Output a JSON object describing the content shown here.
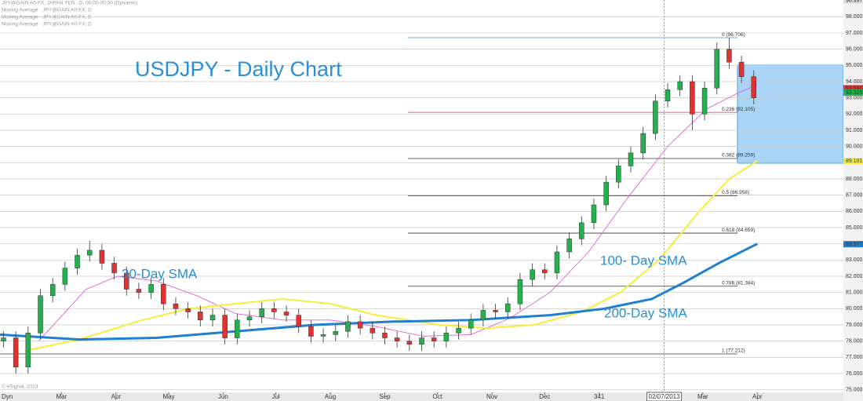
{
  "chart_data": {
    "type": "candlestick",
    "title": "USDJPY - Daily Chart",
    "header": [
      "JPY@GAIN A0-FX, JAPAN YEN , D, 00:00-00:00 (Dynamic)",
      "Moving Average - JPY@GAIN A0-FX, D",
      "Moving Average - JPY@GAIN A0-FX, D",
      "Moving Average - JPY@GAIN A0-FX, D"
    ],
    "copyright": "© eSignal, 2013",
    "corner_label": "Dyn",
    "annotations": [
      "30-Day SMA",
      "100- Day SMA",
      "200-Day SMA"
    ],
    "xlim": [
      0,
      480
    ],
    "xticks": [
      {
        "value": 35,
        "label": "Mar"
      },
      {
        "value": 66,
        "label": "Apr"
      },
      {
        "value": 96,
        "label": "May"
      },
      {
        "value": 127,
        "label": "Jun"
      },
      {
        "value": 157,
        "label": "Jul"
      },
      {
        "value": 188,
        "label": "Aug"
      },
      {
        "value": 219,
        "label": "Sep"
      },
      {
        "value": 249,
        "label": "Oct"
      },
      {
        "value": 280,
        "label": "Nov"
      },
      {
        "value": 310,
        "label": "Dec"
      },
      341,
      {
        "value": 400,
        "label": "Mar"
      },
      {
        "value": 431,
        "label": "Apr"
      }
    ],
    "cursor": {
      "x": 378,
      "label": "02/07/2013"
    },
    "ylim": [
      74.84,
      99.03
    ],
    "yticks": [
      {
        "value": 75,
        "label": "75.000"
      },
      {
        "value": 76,
        "label": "76.000"
      },
      {
        "value": 77,
        "label": "77.000"
      },
      {
        "value": 78,
        "label": "78.000"
      },
      {
        "value": 79,
        "label": "79.000"
      },
      {
        "value": 80,
        "label": "80.000"
      },
      {
        "value": 81,
        "label": "81.000"
      },
      {
        "value": 82,
        "label": "82.000"
      },
      {
        "value": 83,
        "label": "83.000"
      },
      {
        "value": 84,
        "label": "84.000"
      },
      {
        "value": 85,
        "label": "85.000"
      },
      {
        "value": 86,
        "label": "86.000"
      },
      {
        "value": 87,
        "label": "87.000"
      },
      {
        "value": 88,
        "label": "88.000"
      },
      {
        "value": 89,
        "label": "89.000"
      },
      {
        "value": 90,
        "label": "90.000"
      },
      {
        "value": 91,
        "label": "91.000"
      },
      {
        "value": 92,
        "label": "92.000"
      },
      {
        "value": 93,
        "label": "93.000"
      },
      {
        "value": 94,
        "label": "94.000"
      },
      {
        "value": 95,
        "label": "95.000"
      },
      {
        "value": 96,
        "label": "96.000"
      },
      {
        "value": 97,
        "label": "97.000"
      },
      {
        "value": 98,
        "label": "98.000"
      }
    ],
    "grid": true,
    "up_color": "#22b14c",
    "down_color": "#e0322f",
    "x": [
      2,
      9,
      16,
      23,
      30,
      37,
      44,
      51,
      58,
      65,
      72,
      79,
      86,
      93,
      100,
      107,
      114,
      121,
      128,
      135,
      142,
      149,
      156,
      163,
      170,
      177,
      184,
      191,
      198,
      205,
      212,
      219,
      226,
      233,
      240,
      247,
      254,
      261,
      268,
      275,
      282,
      289,
      296,
      303,
      310,
      317,
      324,
      331,
      338,
      345,
      352,
      359,
      366,
      373,
      380,
      387,
      394,
      401,
      408,
      415,
      422,
      429
    ],
    "open": [
      78.0,
      78.2,
      76.4,
      78.5,
      80.8,
      81.5,
      82.5,
      83.3,
      83.6,
      82.8,
      82.2,
      81.2,
      81.0,
      81.5,
      80.3,
      80.0,
      79.8,
      79.3,
      79.6,
      78.2,
      79.3,
      79.5,
      80.0,
      79.8,
      79.6,
      78.9,
      78.3,
      78.4,
      78.6,
      79.2,
      78.8,
      78.5,
      78.2,
      78.0,
      77.8,
      78.2,
      78.0,
      78.5,
      78.8,
      79.3,
      79.9,
      79.8,
      80.3,
      81.8,
      82.4,
      82.2,
      83.5,
      84.3,
      85.3,
      86.4,
      87.8,
      88.8,
      89.6,
      90.8,
      92.8,
      93.5,
      94.0,
      92.0,
      93.6,
      96.0,
      95.2,
      94.3
    ],
    "high": [
      78.6,
      78.6,
      78.9,
      81.2,
      81.9,
      82.9,
      83.7,
      84.2,
      84.0,
      83.2,
      82.6,
      81.6,
      81.9,
      81.9,
      80.7,
      80.4,
      80.2,
      80.0,
      80.0,
      79.7,
      79.9,
      80.4,
      80.4,
      80.2,
      80.0,
      79.3,
      78.8,
      79.0,
      79.6,
      79.6,
      79.2,
      78.9,
      78.6,
      78.4,
      78.6,
      78.6,
      78.9,
      79.2,
      79.7,
      80.3,
      80.3,
      80.7,
      82.2,
      82.8,
      82.8,
      83.9,
      84.7,
      85.7,
      86.8,
      88.2,
      89.2,
      90.0,
      91.2,
      93.2,
      93.9,
      94.4,
      94.4,
      94.0,
      96.4,
      96.7,
      95.6,
      94.7
    ],
    "low": [
      77.6,
      76.0,
      76.0,
      78.1,
      80.4,
      81.1,
      82.1,
      82.9,
      82.4,
      81.8,
      80.8,
      80.6,
      80.6,
      79.9,
      79.6,
      79.4,
      78.9,
      78.9,
      77.8,
      77.8,
      78.9,
      79.1,
      79.4,
      79.2,
      78.5,
      77.9,
      77.9,
      78.0,
      78.2,
      78.4,
      78.1,
      77.8,
      77.6,
      77.4,
      77.4,
      77.6,
      77.6,
      78.1,
      78.4,
      78.9,
      79.4,
      79.4,
      79.9,
      81.4,
      81.8,
      81.8,
      83.1,
      83.9,
      84.9,
      86.0,
      87.4,
      88.4,
      89.2,
      90.4,
      92.4,
      93.1,
      91.0,
      91.6,
      93.2,
      94.8,
      93.9,
      92.6
    ],
    "close": [
      78.2,
      76.4,
      78.5,
      80.8,
      81.5,
      82.5,
      83.3,
      83.6,
      82.8,
      82.2,
      81.2,
      81.0,
      81.5,
      80.3,
      80.0,
      79.8,
      79.3,
      79.6,
      78.2,
      79.3,
      79.5,
      80.0,
      79.8,
      79.6,
      78.9,
      78.3,
      78.4,
      78.6,
      79.2,
      78.8,
      78.5,
      78.2,
      78.0,
      77.8,
      78.2,
      78.0,
      78.5,
      78.8,
      79.3,
      79.9,
      79.8,
      80.3,
      81.8,
      82.4,
      82.2,
      83.5,
      84.3,
      85.3,
      86.4,
      87.8,
      88.8,
      89.6,
      90.8,
      92.8,
      93.5,
      94.0,
      92.0,
      93.6,
      96.0,
      95.2,
      94.3,
      93.0
    ],
    "series": [
      {
        "color": "#e060d0",
        "x": [
          22,
          49,
          67,
          89,
          112,
          134,
          161,
          188,
          214,
          241,
          268,
          290,
          313,
          335,
          357,
          380,
          402,
          420,
          431
        ],
        "values": [
          78.0,
          81.2,
          82.0,
          81.7,
          80.8,
          79.7,
          79.3,
          79.3,
          78.9,
          78.3,
          78.4,
          79.4,
          81.0,
          83.5,
          86.8,
          90.0,
          92.3,
          93.3,
          93.8
        ]
      },
      {
        "color": "#f5ee3a",
        "x": [
          14,
          45,
          81,
          107,
          134,
          161,
          188,
          214,
          250,
          277,
          304,
          331,
          353,
          375,
          398,
          415,
          431
        ],
        "values": [
          77.4,
          78.1,
          79.3,
          80.0,
          80.3,
          80.6,
          80.3,
          79.6,
          79.0,
          78.8,
          79.0,
          79.8,
          81.0,
          83.0,
          86.0,
          88.0,
          89.1
        ]
      },
      {
        "color": "#1f7fd0",
        "x": [
          0,
          45,
          89,
          134,
          179,
          223,
          268,
          313,
          344,
          371,
          389,
          409,
          431
        ],
        "values": [
          78.4,
          78.1,
          78.2,
          78.6,
          79.0,
          79.2,
          79.3,
          79.6,
          80.0,
          80.6,
          81.6,
          82.8,
          84.0
        ]
      }
    ],
    "fib_levels": [
      {
        "label": "0 (96.706)",
        "value": 96.706,
        "color": "#4a90d9"
      },
      {
        "label": "0.236 (92.105)",
        "value": 92.105,
        "color": "#d0306a"
      },
      {
        "label": "0.382 (89.259)",
        "value": 89.259,
        "color": "#333333"
      },
      {
        "label": "0.5 (86.958)",
        "value": 86.958,
        "color": "#333333"
      },
      {
        "label": "0.618 (84.659)",
        "value": 84.659,
        "color": "#333333"
      },
      {
        "label": "0.786 (81.384)",
        "value": 81.384,
        "color": "#333333"
      },
      {
        "label": "1 (77.212)",
        "value": 77.212,
        "color": "#333333"
      }
    ],
    "price_tags": [
      {
        "value": 93.591,
        "label": "93.591",
        "color": "#e0322f"
      },
      {
        "value": 93.325,
        "label": "93.325",
        "color": "#22b14c"
      },
      {
        "value": 89.101,
        "label": "89.101",
        "color": "#f5ee3a"
      },
      {
        "value": 83.977,
        "label": "83.977",
        "color": "#1f7fd0"
      },
      {
        "value": 98.997,
        "label": "98.997",
        "color": "#dddddd"
      }
    ]
  }
}
